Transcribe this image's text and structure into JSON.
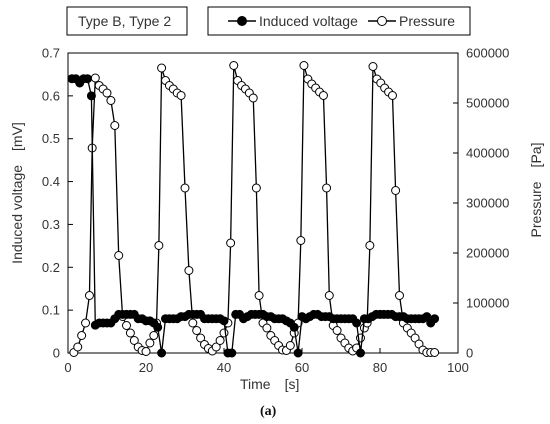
{
  "chart_data": {
    "type": "line",
    "annotation": "Type B, Type 2",
    "caption": "(a)",
    "xlabel": "Time　[s]",
    "ylabel": "Induced voltage　[mV]",
    "y2label": "Pressure　[Pa]",
    "xlim": [
      0,
      100
    ],
    "ylim": [
      0,
      0.7
    ],
    "y2lim": [
      0,
      600000
    ],
    "xticks": [
      "0",
      "20",
      "40",
      "60",
      "80",
      "100"
    ],
    "yticks": [
      "0",
      "0.1",
      "0.2",
      "0.3",
      "0.4",
      "0.5",
      "0.6",
      "0.7"
    ],
    "y2ticks": [
      "0",
      "100000",
      "200000",
      "300000",
      "400000",
      "500000",
      "600000"
    ],
    "grid": false,
    "legend_position": "top",
    "series": [
      {
        "name": "Induced voltage",
        "axis": "left",
        "marker": "filled-circle",
        "color": "#000000",
        "points": [
          [
            1,
            0.64
          ],
          [
            2,
            0.64
          ],
          [
            3,
            0.63
          ],
          [
            4,
            0.64
          ],
          [
            5,
            0.64
          ],
          [
            6,
            0.6
          ],
          [
            7,
            0.065
          ],
          [
            8,
            0.07
          ],
          [
            9,
            0.07
          ],
          [
            10,
            0.07
          ],
          [
            11,
            0.07
          ],
          [
            12,
            0.08
          ],
          [
            13,
            0.09
          ],
          [
            14,
            0.09
          ],
          [
            15,
            0.09
          ],
          [
            16,
            0.09
          ],
          [
            17,
            0.09
          ],
          [
            18,
            0.08
          ],
          [
            19,
            0.08
          ],
          [
            20,
            0.075
          ],
          [
            21,
            0.075
          ],
          [
            22,
            0.07
          ],
          [
            23,
            0.06
          ],
          [
            24,
            0.0
          ],
          [
            25,
            0.08
          ],
          [
            26,
            0.08
          ],
          [
            27,
            0.08
          ],
          [
            28,
            0.08
          ],
          [
            29,
            0.085
          ],
          [
            30,
            0.085
          ],
          [
            31,
            0.09
          ],
          [
            32,
            0.09
          ],
          [
            33,
            0.09
          ],
          [
            34,
            0.09
          ],
          [
            35,
            0.08
          ],
          [
            36,
            0.08
          ],
          [
            37,
            0.08
          ],
          [
            38,
            0.08
          ],
          [
            39,
            0.08
          ],
          [
            40,
            0.075
          ],
          [
            41,
            0.0
          ],
          [
            42,
            0.0
          ],
          [
            43,
            0.09
          ],
          [
            44,
            0.09
          ],
          [
            45,
            0.08
          ],
          [
            46,
            0.085
          ],
          [
            47,
            0.09
          ],
          [
            48,
            0.09
          ],
          [
            49,
            0.09
          ],
          [
            50,
            0.09
          ],
          [
            51,
            0.085
          ],
          [
            52,
            0.085
          ],
          [
            53,
            0.08
          ],
          [
            54,
            0.08
          ],
          [
            55,
            0.08
          ],
          [
            56,
            0.075
          ],
          [
            57,
            0.07
          ],
          [
            58,
            0.06
          ],
          [
            59,
            0.0
          ],
          [
            60,
            0.085
          ],
          [
            61,
            0.08
          ],
          [
            62,
            0.085
          ],
          [
            63,
            0.09
          ],
          [
            64,
            0.09
          ],
          [
            65,
            0.085
          ],
          [
            66,
            0.085
          ],
          [
            67,
            0.085
          ],
          [
            68,
            0.08
          ],
          [
            69,
            0.08
          ],
          [
            70,
            0.08
          ],
          [
            71,
            0.08
          ],
          [
            72,
            0.08
          ],
          [
            73,
            0.08
          ],
          [
            74,
            0.07
          ],
          [
            75,
            0.0
          ],
          [
            76,
            0.08
          ],
          [
            77,
            0.08
          ],
          [
            78,
            0.085
          ],
          [
            79,
            0.09
          ],
          [
            80,
            0.09
          ],
          [
            81,
            0.09
          ],
          [
            82,
            0.09
          ],
          [
            83,
            0.09
          ],
          [
            84,
            0.085
          ],
          [
            85,
            0.085
          ],
          [
            86,
            0.085
          ],
          [
            87,
            0.08
          ],
          [
            88,
            0.08
          ],
          [
            89,
            0.08
          ],
          [
            90,
            0.08
          ],
          [
            91,
            0.08
          ],
          [
            92,
            0.085
          ],
          [
            93,
            0.07
          ],
          [
            94,
            0.08
          ]
        ]
      },
      {
        "name": "Pressure",
        "axis": "right",
        "marker": "open-circle",
        "color": "#000000",
        "points": [
          [
            1.5,
            1000
          ],
          [
            2.5,
            12000
          ],
          [
            3.5,
            35000
          ],
          [
            4.5,
            60000
          ],
          [
            5.5,
            115000
          ],
          [
            6.2,
            410000
          ],
          [
            7,
            550000
          ],
          [
            8,
            535000
          ],
          [
            9,
            528000
          ],
          [
            10,
            520000
          ],
          [
            11,
            505000
          ],
          [
            12,
            455000
          ],
          [
            13,
            195000
          ],
          [
            14,
            73000
          ],
          [
            15,
            55000
          ],
          [
            16,
            40000
          ],
          [
            17,
            25000
          ],
          [
            18,
            12000
          ],
          [
            19,
            5000
          ],
          [
            20,
            3000
          ],
          [
            21,
            20000
          ],
          [
            22,
            35000
          ],
          [
            22.7,
            60000
          ],
          [
            23.3,
            215000
          ],
          [
            24,
            570000
          ],
          [
            25,
            545000
          ],
          [
            26,
            535000
          ],
          [
            27,
            528000
          ],
          [
            28,
            520000
          ],
          [
            29,
            515000
          ],
          [
            30,
            330000
          ],
          [
            31,
            165000
          ],
          [
            32,
            60000
          ],
          [
            33,
            45000
          ],
          [
            34,
            30000
          ],
          [
            35,
            17000
          ],
          [
            36,
            9000
          ],
          [
            37,
            4000
          ],
          [
            38,
            12000
          ],
          [
            39,
            25000
          ],
          [
            40,
            40000
          ],
          [
            41,
            60000
          ],
          [
            41.7,
            220000
          ],
          [
            42.5,
            575000
          ],
          [
            43.5,
            545000
          ],
          [
            44.5,
            535000
          ],
          [
            45.5,
            528000
          ],
          [
            46.5,
            520000
          ],
          [
            47.5,
            510000
          ],
          [
            48.3,
            330000
          ],
          [
            49,
            115000
          ],
          [
            50,
            60000
          ],
          [
            51,
            50000
          ],
          [
            52,
            35000
          ],
          [
            53,
            25000
          ],
          [
            54,
            15000
          ],
          [
            55,
            6000
          ],
          [
            56,
            5000
          ],
          [
            57,
            15000
          ],
          [
            58,
            40000
          ],
          [
            59,
            60000
          ],
          [
            59.7,
            225000
          ],
          [
            60.5,
            575000
          ],
          [
            61.5,
            548000
          ],
          [
            62.5,
            538000
          ],
          [
            63.5,
            530000
          ],
          [
            64.5,
            522000
          ],
          [
            65.5,
            515000
          ],
          [
            66.3,
            330000
          ],
          [
            67,
            115000
          ],
          [
            68,
            55000
          ],
          [
            69,
            45000
          ],
          [
            70,
            30000
          ],
          [
            71,
            20000
          ],
          [
            72,
            10000
          ],
          [
            73,
            4000
          ],
          [
            74,
            10000
          ],
          [
            75,
            30000
          ],
          [
            76,
            50000
          ],
          [
            76.7,
            60000
          ],
          [
            77.4,
            215000
          ],
          [
            78.2,
            573000
          ],
          [
            79.2,
            548000
          ],
          [
            80.2,
            540000
          ],
          [
            81.2,
            530000
          ],
          [
            82.2,
            522000
          ],
          [
            83.2,
            515000
          ],
          [
            84,
            325000
          ],
          [
            85,
            115000
          ],
          [
            86,
            60000
          ],
          [
            87,
            50000
          ],
          [
            88,
            40000
          ],
          [
            89,
            30000
          ],
          [
            90,
            18000
          ],
          [
            91,
            6000
          ],
          [
            92,
            1000
          ],
          [
            93,
            1000
          ],
          [
            94,
            1000
          ]
        ]
      }
    ]
  }
}
